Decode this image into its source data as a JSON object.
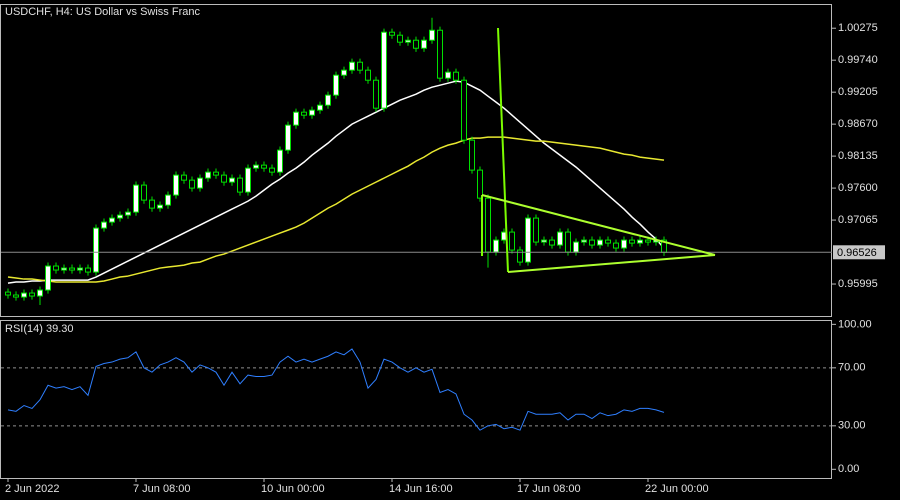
{
  "chart_data": [
    {
      "type": "candlestick",
      "title": "USDCHF, H4:  US Dollar vs Swiss Franc",
      "categories": [
        "2 Jun 2022",
        null,
        null,
        null,
        null,
        null,
        null,
        null,
        null,
        null,
        null,
        null,
        null,
        null,
        null,
        null,
        "7 Jun 08:00",
        null,
        null,
        null,
        null,
        null,
        null,
        null,
        null,
        null,
        null,
        null,
        null,
        null,
        null,
        null,
        "10 Jun 00:00",
        null,
        null,
        null,
        null,
        null,
        null,
        null,
        null,
        null,
        null,
        null,
        null,
        null,
        null,
        null,
        "14 Jun 16:00",
        null,
        null,
        null,
        null,
        null,
        null,
        null,
        null,
        null,
        null,
        null,
        null,
        null,
        null,
        null,
        "17 Jun 08:00",
        null,
        null,
        null,
        null,
        null,
        null,
        null,
        null,
        null,
        null,
        null,
        null,
        null,
        null,
        null,
        "22 Jun 00:00",
        null,
        null
      ],
      "open": [
        0.9586,
        0.95811,
        0.95777,
        0.95844,
        0.95794,
        0.95894,
        0.96296,
        0.96229,
        0.96262,
        0.96229,
        0.96262,
        0.96195,
        0.96931,
        0.97031,
        0.97098,
        0.97148,
        0.97198,
        0.9765,
        0.97399,
        0.97265,
        0.97315,
        0.97483,
        0.97817,
        0.97733,
        0.976,
        0.97767,
        0.97867,
        0.97817,
        0.977,
        0.97767,
        0.97533,
        0.97934,
        0.97984,
        0.97934,
        0.97867,
        0.98235,
        0.98653,
        0.9887,
        0.9882,
        0.98904,
        0.98987,
        0.99155,
        0.99489,
        0.99573,
        0.99706,
        0.99573,
        0.99405,
        0.98937,
        1.00208,
        1.00158,
        1.00041,
        1.00074,
        0.9994,
        1.00074,
        1.00241,
        0.99439,
        0.99539,
        0.99405,
        0.98402,
        0.97901,
        0.97432,
        0.9653,
        0.9673,
        0.96864,
        0.96563,
        0.96362,
        0.97098,
        0.96697,
        0.9673,
        0.96647,
        0.96864,
        0.9653,
        0.96697,
        0.9673,
        0.96647,
        0.9673,
        0.9668,
        0.96597,
        0.9673,
        0.9668,
        0.9673,
        0.96697,
        0.9673
      ],
      "high": [
        0.9592,
        0.95871,
        0.95904,
        0.95904,
        0.95954,
        0.96356,
        0.96356,
        0.96322,
        0.96322,
        0.96322,
        0.96322,
        0.96991,
        0.97091,
        0.97158,
        0.97208,
        0.97258,
        0.9771,
        0.9771,
        0.97459,
        0.97375,
        0.97543,
        0.97877,
        0.97877,
        0.97793,
        0.97827,
        0.97927,
        0.97927,
        0.97877,
        0.97827,
        0.97827,
        0.97994,
        0.98044,
        0.98044,
        0.97994,
        0.98295,
        0.98713,
        0.9893,
        0.9893,
        0.98964,
        0.99047,
        0.99215,
        0.99549,
        0.99633,
        0.99766,
        0.99766,
        0.99633,
        0.99465,
        1.00268,
        1.00268,
        1.00218,
        1.00134,
        1.00134,
        1.00134,
        1.0045,
        1.00301,
        0.99599,
        0.99599,
        0.99465,
        0.98462,
        0.97961,
        0.97492,
        0.9679,
        0.96924,
        0.96924,
        0.96623,
        0.97158,
        0.97158,
        0.9679,
        0.9679,
        0.96924,
        0.96924,
        0.96757,
        0.9679,
        0.9679,
        0.9679,
        0.9679,
        0.9674,
        0.9679,
        0.9679,
        0.9679,
        0.9679,
        0.9679,
        0.9679
      ],
      "low": [
        0.95751,
        0.95717,
        0.95717,
        0.95734,
        0.95644,
        0.95834,
        0.96169,
        0.96169,
        0.96169,
        0.96169,
        0.96135,
        0.96135,
        0.96871,
        0.96971,
        0.97038,
        0.97088,
        0.97138,
        0.97339,
        0.97205,
        0.97205,
        0.97255,
        0.97423,
        0.97673,
        0.9754,
        0.9754,
        0.97707,
        0.97757,
        0.9764,
        0.9764,
        0.97473,
        0.97473,
        0.97874,
        0.97874,
        0.97807,
        0.97807,
        0.98175,
        0.98593,
        0.9876,
        0.9876,
        0.98844,
        0.98927,
        0.99095,
        0.99429,
        0.99513,
        0.99513,
        0.99345,
        0.98877,
        0.98877,
        1.00098,
        0.99981,
        0.99981,
        0.9988,
        0.9988,
        1.00014,
        0.99379,
        0.99379,
        0.99345,
        0.98342,
        0.97841,
        0.97372,
        0.9627,
        0.9647,
        0.9667,
        0.96503,
        0.96302,
        0.96302,
        0.96637,
        0.96637,
        0.96587,
        0.96587,
        0.9647,
        0.9647,
        0.96637,
        0.96587,
        0.96587,
        0.9662,
        0.96537,
        0.96537,
        0.9662,
        0.9662,
        0.96637,
        0.96637,
        0.96466
      ],
      "close": [
        0.95811,
        0.95777,
        0.95844,
        0.95794,
        0.95894,
        0.96296,
        0.96229,
        0.96262,
        0.96229,
        0.96262,
        0.96195,
        0.96931,
        0.97031,
        0.97098,
        0.97148,
        0.97198,
        0.9765,
        0.97399,
        0.97265,
        0.97315,
        0.97483,
        0.97817,
        0.97733,
        0.976,
        0.97767,
        0.97867,
        0.97817,
        0.977,
        0.97767,
        0.97533,
        0.97934,
        0.97984,
        0.97934,
        0.97867,
        0.98235,
        0.98653,
        0.9887,
        0.9882,
        0.98904,
        0.98987,
        0.99155,
        0.99489,
        0.99573,
        0.99706,
        0.99573,
        0.99405,
        0.98937,
        1.00208,
        1.00158,
        1.00041,
        1.00074,
        0.9994,
        1.00074,
        1.00241,
        0.99439,
        0.99539,
        0.99405,
        0.98402,
        0.97901,
        0.97432,
        0.9653,
        0.9673,
        0.96864,
        0.96563,
        0.96362,
        0.97098,
        0.96697,
        0.9673,
        0.96647,
        0.96864,
        0.9653,
        0.96697,
        0.9673,
        0.96647,
        0.9673,
        0.9668,
        0.96597,
        0.9673,
        0.9668,
        0.9673,
        0.96697,
        0.9673,
        0.96526
      ],
      "up_color": "#ffffff",
      "down_color": "#000000",
      "wick_color": "#00e000",
      "series": [
        {
          "color": "#ffffff",
          "values": [
            0.96011,
            0.96028,
            0.96028,
            0.96045,
            0.96045,
            0.96061,
            0.96061,
            0.96061,
            0.96061,
            0.96061,
            0.96061,
            0.96112,
            0.96178,
            0.96245,
            0.96312,
            0.96379,
            0.96446,
            0.96513,
            0.9658,
            0.96647,
            0.96713,
            0.9678,
            0.96847,
            0.96914,
            0.96981,
            0.97048,
            0.97115,
            0.97182,
            0.97249,
            0.97315,
            0.97382,
            0.97466,
            0.97566,
            0.97667,
            0.9775,
            0.9785,
            0.97934,
            0.98034,
            0.98151,
            0.98252,
            0.98352,
            0.98469,
            0.98569,
            0.9867,
            0.98737,
            0.98803,
            0.9887,
            0.98937,
            0.99004,
            0.99071,
            0.99121,
            0.99171,
            0.99238,
            0.99288,
            0.99322,
            0.99355,
            0.99389,
            0.99372,
            0.99305,
            0.99238,
            0.99138,
            0.99038,
            0.98937,
            0.9882,
            0.98703,
            0.98586,
            0.98469,
            0.98352,
            0.98252,
            0.98151,
            0.98051,
            0.97951,
            0.97834,
            0.97717,
            0.976,
            0.97483,
            0.97366,
            0.97249,
            0.97115,
            0.96998,
            0.96864,
            0.96747,
            0.96596
          ]
        },
        {
          "color": "#e8e830",
          "values": [
            0.96112,
            0.96095,
            0.96078,
            0.96078,
            0.96061,
            0.96045,
            0.96028,
            0.96028,
            0.96028,
            0.96028,
            0.96028,
            0.96028,
            0.96045,
            0.96078,
            0.96112,
            0.96128,
            0.96162,
            0.96195,
            0.96229,
            0.96262,
            0.96279,
            0.96295,
            0.96312,
            0.96346,
            0.96362,
            0.96413,
            0.96463,
            0.96496,
            0.96546,
            0.96596,
            0.96647,
            0.96697,
            0.96747,
            0.96797,
            0.96847,
            0.96897,
            0.96948,
            0.97014,
            0.97098,
            0.97182,
            0.97265,
            0.97332,
            0.97416,
            0.97499,
            0.97566,
            0.97633,
            0.977,
            0.97767,
            0.97834,
            0.97901,
            0.97967,
            0.98051,
            0.98118,
            0.98202,
            0.98268,
            0.98319,
            0.98352,
            0.98402,
            0.98436,
            0.98436,
            0.98452,
            0.98452,
            0.98452,
            0.98436,
            0.98419,
            0.98402,
            0.98385,
            0.98385,
            0.98369,
            0.98352,
            0.98335,
            0.98319,
            0.98302,
            0.98285,
            0.98268,
            0.98235,
            0.98202,
            0.98168,
            0.98151,
            0.98118,
            0.98101,
            0.98085,
            0.98068
          ]
        }
      ],
      "ylim": [
        0.9546,
        1.0068
      ],
      "yticks": [
        1.00275,
        {
          "value": 0.9974,
          "label": "0.99740"
        },
        0.99205,
        {
          "value": 0.9867,
          "label": "0.98670"
        },
        0.98135,
        {
          "value": 0.976,
          "label": "0.97600"
        },
        0.97065,
        0.95995
      ],
      "current_price": 0.96526
    },
    {
      "type": "line",
      "title": "RSI(14) 39.30",
      "values": [
        41,
        40,
        44,
        42,
        48,
        58,
        56,
        57,
        55,
        57,
        51,
        71,
        73,
        74,
        76,
        77,
        81,
        70,
        67,
        72,
        74,
        77,
        74,
        67,
        72,
        70,
        67,
        58,
        67,
        59,
        65,
        64,
        64,
        65,
        74,
        78,
        74,
        76,
        74,
        76,
        78,
        81,
        79,
        83,
        74,
        56,
        62,
        76,
        74,
        70,
        67,
        70,
        67,
        69,
        53,
        55,
        52,
        38,
        34,
        27,
        30,
        31,
        28,
        29,
        27,
        40,
        38,
        38,
        38,
        39,
        34,
        38,
        38,
        35,
        39,
        37,
        38,
        41,
        40,
        42,
        42,
        41,
        39.3
      ],
      "color": "#2f7fff",
      "ylim": [
        -6,
        103
      ],
      "yticks": [
        {
          "value": 100,
          "label": "100.00"
        },
        {
          "value": 70,
          "label": "70.00"
        },
        {
          "value": 30,
          "label": "30.00"
        },
        {
          "value": 0,
          "label": "0.00"
        }
      ],
      "levels": [
        70,
        30
      ]
    }
  ]
}
